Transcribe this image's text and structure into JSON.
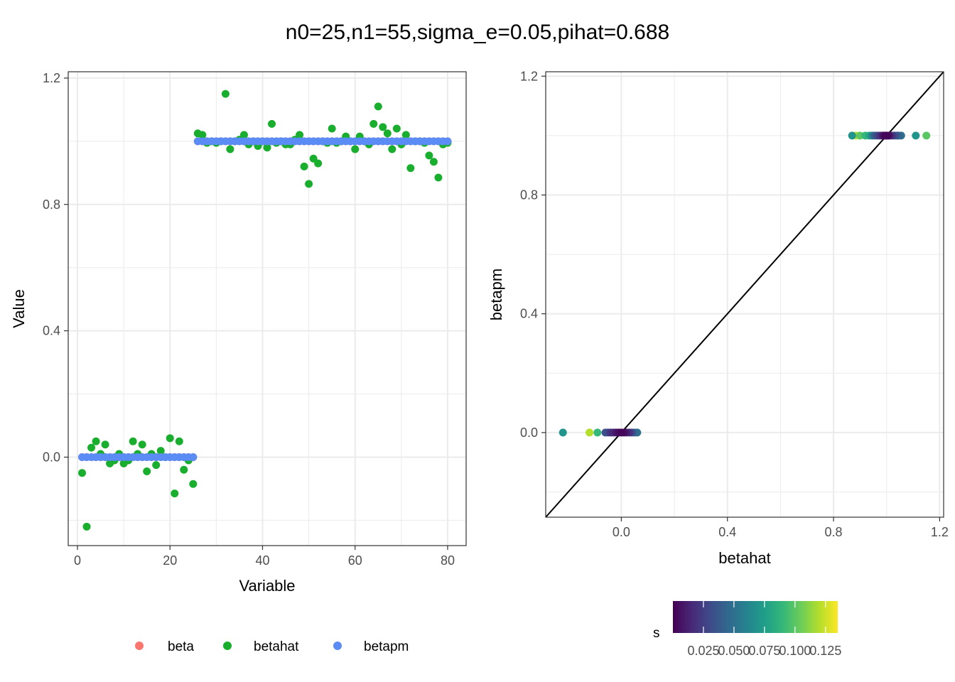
{
  "title": "n0=25,n1=55,sigma_e=0.05,pihat=0.688",
  "colors": {
    "beta": "#F8766D",
    "betahat": "#1AAE2E",
    "betapm": "#5B8CF5",
    "panel_border": "#333333",
    "grid": "#EBEBEB",
    "identity_line": "#000000"
  },
  "chart_data": [
    {
      "type": "scatter",
      "panel": "left",
      "xlabel": "Variable",
      "ylabel": "Value",
      "xlim": [
        -2,
        84
      ],
      "ylim": [
        -0.28,
        1.22
      ],
      "xticks": [
        0,
        20,
        40,
        60,
        80
      ],
      "xtick_labels": [
        "0",
        "20",
        "40",
        "60",
        "80"
      ],
      "yticks": [
        0.0,
        0.4,
        0.8,
        1.2
      ],
      "ytick_labels": [
        "0.0",
        "0.4",
        "0.8",
        "1.2"
      ],
      "grid": true,
      "legend": {
        "position": "bottom",
        "entries": [
          {
            "key": "beta",
            "label": "beta"
          },
          {
            "key": "betahat",
            "label": "betahat"
          },
          {
            "key": "betapm",
            "label": "betapm"
          }
        ]
      },
      "series": [
        {
          "name": "beta",
          "x": [
            1,
            2,
            3,
            4,
            5,
            6,
            7,
            8,
            9,
            10,
            11,
            12,
            13,
            14,
            15,
            16,
            17,
            18,
            19,
            20,
            21,
            22,
            23,
            24,
            25,
            26,
            27,
            28,
            29,
            30,
            31,
            32,
            33,
            34,
            35,
            36,
            37,
            38,
            39,
            40,
            41,
            42,
            43,
            44,
            45,
            46,
            47,
            48,
            49,
            50,
            51,
            52,
            53,
            54,
            55,
            56,
            57,
            58,
            59,
            60,
            61,
            62,
            63,
            64,
            65,
            66,
            67,
            68,
            69,
            70,
            71,
            72,
            73,
            74,
            75,
            76,
            77,
            78,
            79,
            80
          ],
          "y": [
            0,
            0,
            0,
            0,
            0,
            0,
            0,
            0,
            0,
            0,
            0,
            0,
            0,
            0,
            0,
            0,
            0,
            0,
            0,
            0,
            0,
            0,
            0,
            0,
            0,
            1,
            1,
            1,
            1,
            1,
            1,
            1,
            1,
            1,
            1,
            1,
            1,
            1,
            1,
            1,
            1,
            1,
            1,
            1,
            1,
            1,
            1,
            1,
            1,
            1,
            1,
            1,
            1,
            1,
            1,
            1,
            1,
            1,
            1,
            1,
            1,
            1,
            1,
            1,
            1,
            1,
            1,
            1,
            1,
            1,
            1,
            1,
            1,
            1,
            1,
            1,
            1,
            1,
            1,
            1
          ]
        },
        {
          "name": "betahat",
          "x": [
            1,
            2,
            3,
            4,
            5,
            6,
            7,
            8,
            9,
            10,
            11,
            12,
            13,
            14,
            15,
            16,
            17,
            18,
            19,
            20,
            21,
            22,
            23,
            24,
            25,
            26,
            27,
            28,
            29,
            30,
            31,
            32,
            33,
            34,
            35,
            36,
            37,
            38,
            39,
            40,
            41,
            42,
            43,
            44,
            45,
            46,
            47,
            48,
            49,
            50,
            51,
            52,
            53,
            54,
            55,
            56,
            57,
            58,
            59,
            60,
            61,
            62,
            63,
            64,
            65,
            66,
            67,
            68,
            69,
            70,
            71,
            72,
            73,
            74,
            75,
            76,
            77,
            78,
            79,
            80
          ],
          "y": [
            -0.05,
            -0.22,
            0.03,
            0.05,
            0.01,
            0.04,
            -0.02,
            -0.01,
            0.01,
            -0.02,
            -0.01,
            0.05,
            0.01,
            0.04,
            -0.045,
            0.01,
            -0.025,
            0.02,
            0.0,
            0.06,
            -0.115,
            0.05,
            -0.04,
            -0.01,
            -0.085,
            1.025,
            1.02,
            0.995,
            1.0,
            0.995,
            1.0,
            1.15,
            0.975,
            1.0,
            1.005,
            1.02,
            0.99,
            1.0,
            0.985,
            1.0,
            0.98,
            1.055,
            0.995,
            1.0,
            0.99,
            0.99,
            1.005,
            1.02,
            0.92,
            0.865,
            0.945,
            0.93,
            1.0,
            0.995,
            1.04,
            0.995,
            1.0,
            1.015,
            1.0,
            0.975,
            1.015,
            1.0,
            0.99,
            1.055,
            1.11,
            1.045,
            1.025,
            0.975,
            1.04,
            0.99,
            1.02,
            0.915,
            1.0,
            1.0,
            0.995,
            0.955,
            0.935,
            0.885,
            0.99,
            0.995
          ]
        },
        {
          "name": "betapm",
          "x": [
            1,
            2,
            3,
            4,
            5,
            6,
            7,
            8,
            9,
            10,
            11,
            12,
            13,
            14,
            15,
            16,
            17,
            18,
            19,
            20,
            21,
            22,
            23,
            24,
            25,
            26,
            27,
            28,
            29,
            30,
            31,
            32,
            33,
            34,
            35,
            36,
            37,
            38,
            39,
            40,
            41,
            42,
            43,
            44,
            45,
            46,
            47,
            48,
            49,
            50,
            51,
            52,
            53,
            54,
            55,
            56,
            57,
            58,
            59,
            60,
            61,
            62,
            63,
            64,
            65,
            66,
            67,
            68,
            69,
            70,
            71,
            72,
            73,
            74,
            75,
            76,
            77,
            78,
            79,
            80
          ],
          "y": [
            0,
            0,
            0,
            0,
            0,
            0,
            0,
            0,
            0,
            0,
            0,
            0,
            0,
            0,
            0,
            0,
            0,
            0,
            0,
            0,
            0,
            0,
            0,
            0,
            0,
            1,
            1,
            1,
            1,
            1,
            1,
            1,
            1,
            1,
            1,
            1,
            1,
            1,
            1,
            1,
            1,
            1,
            1,
            1,
            1,
            1,
            1,
            1,
            1,
            1,
            1,
            1,
            1,
            1,
            1,
            1,
            1,
            1,
            1,
            1,
            1,
            1,
            1,
            1,
            1,
            1,
            1,
            1,
            1,
            1,
            1,
            1,
            1,
            1,
            1,
            1,
            1,
            1,
            1,
            1
          ]
        }
      ]
    },
    {
      "type": "scatter",
      "panel": "right",
      "xlabel": "betahat",
      "ylabel": "betapm",
      "xlim": [
        -0.285,
        1.215
      ],
      "ylim": [
        -0.285,
        1.215
      ],
      "xticks": [
        0.0,
        0.4,
        0.8,
        1.2
      ],
      "xtick_labels": [
        "0.0",
        "0.4",
        "0.8",
        "1.2"
      ],
      "yticks": [
        0.0,
        0.4,
        0.8,
        1.2
      ],
      "ytick_labels": [
        "0.0",
        "0.4",
        "0.8",
        "1.2"
      ],
      "grid": true,
      "reference_line": {
        "slope": 1,
        "intercept": 0
      },
      "colorbar": {
        "title": "s",
        "position": "bottom",
        "min": 0.0,
        "max": 0.135,
        "ticks": [
          0.025,
          0.05,
          0.075,
          0.1,
          0.125
        ],
        "tick_labels": [
          "0.025",
          "0.050",
          "0.075",
          "0.100",
          "0.125"
        ],
        "palette": [
          "#440154",
          "#482878",
          "#3E4A89",
          "#31688E",
          "#26828E",
          "#1F9E89",
          "#35B779",
          "#6DCD59",
          "#B4DE2C",
          "#FDE725"
        ]
      },
      "points": {
        "x": [
          -0.22,
          -0.12,
          -0.09,
          -0.06,
          -0.05,
          -0.04,
          -0.03,
          -0.02,
          -0.01,
          0.0,
          0.01,
          0.02,
          0.03,
          0.04,
          0.05,
          0.06,
          0.87,
          0.885,
          0.9,
          0.92,
          0.935,
          0.945,
          0.955,
          0.965,
          0.975,
          0.985,
          0.99,
          0.995,
          1.0,
          1.005,
          1.01,
          1.02,
          1.03,
          1.04,
          1.045,
          1.055,
          1.11,
          1.15
        ],
        "y": [
          0,
          0,
          0,
          0,
          0,
          0,
          0,
          0,
          0,
          0,
          0,
          0,
          0,
          0,
          0,
          0,
          1,
          1,
          1,
          1,
          1,
          1,
          1,
          1,
          1,
          1,
          1,
          1,
          1,
          1,
          1,
          1,
          1,
          1,
          1,
          1,
          1,
          1
        ],
        "s": [
          0.07,
          0.12,
          0.09,
          0.035,
          0.03,
          0.02,
          0.015,
          0.01,
          0.005,
          0.002,
          0.005,
          0.012,
          0.02,
          0.03,
          0.045,
          0.05,
          0.07,
          0.12,
          0.1,
          0.09,
          0.08,
          0.06,
          0.04,
          0.03,
          0.02,
          0.012,
          0.006,
          0.002,
          0.002,
          0.004,
          0.01,
          0.02,
          0.03,
          0.04,
          0.045,
          0.05,
          0.07,
          0.1
        ]
      }
    }
  ]
}
